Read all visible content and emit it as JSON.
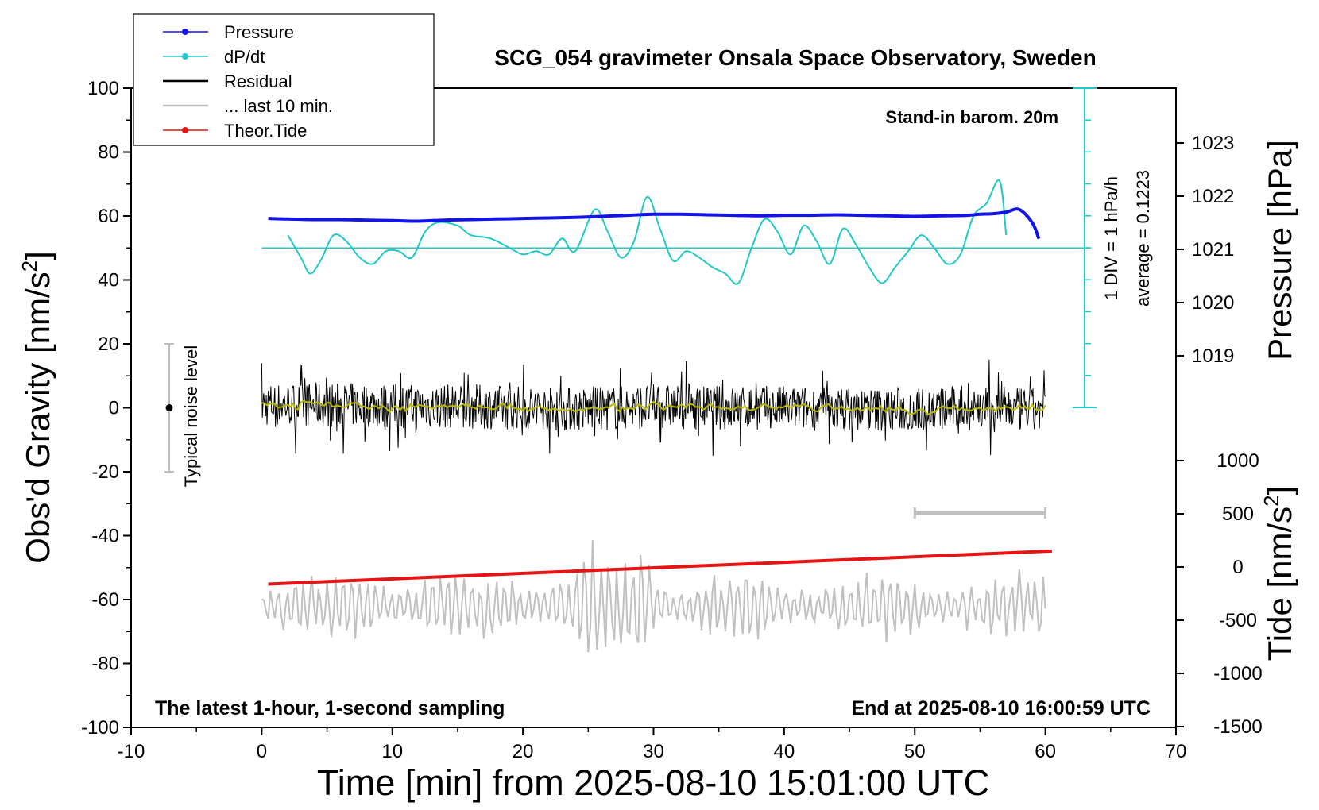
{
  "chart_data": {
    "type": "line",
    "title": "SCG_054 gravimeter Onsala Space Observatory, Sweden",
    "xlabel": "Time [min] from 2025-08-10 15:01:00 UTC",
    "ylabel_left_main": "Obs'd Gravity [nm/s",
    "ylabel_left_sup": "2",
    "ylabel_left_end": "]",
    "ylabel_right_top": "Pressure [hPa]",
    "ylabel_right_bottom_main": "Tide [nm/s",
    "ylabel_right_bottom_sup": "2",
    "ylabel_right_bottom_end": "]",
    "xlim": [
      -10,
      70
    ],
    "ylim": [
      -100,
      100
    ],
    "x_ticks": [
      -10,
      0,
      10,
      20,
      30,
      40,
      50,
      60,
      70
    ],
    "y_ticks": [
      100,
      80,
      60,
      40,
      20,
      0,
      -20,
      -40,
      -60,
      -80,
      -100
    ],
    "pressure_ticks": [
      1023,
      1022,
      1021,
      1020,
      1019
    ],
    "tide_ticks": [
      1000,
      500,
      0,
      -500,
      -1000,
      -1500
    ],
    "annotations": {
      "barometer": "Stand-in barom. 20m",
      "latest": "The latest 1-hour, 1-second sampling",
      "end": "End at 2025-08-10 16:00:59 UTC",
      "div": "1 DIV = 1 hPa/h",
      "average": "average = 0.1223",
      "noise": "Typical noise level"
    },
    "legend": [
      {
        "name": "Pressure",
        "color": "#1414e6",
        "marker": true
      },
      {
        "name": "dP/dt",
        "color": "#20c8c8",
        "marker": true
      },
      {
        "name": "Residual",
        "color": "#000000",
        "marker": false
      },
      {
        "name": "... last 10 min.",
        "color": "#c0c0c0",
        "marker": false
      },
      {
        "name": "Theor.Tide",
        "color": "#e61414",
        "marker": true
      }
    ],
    "series": [
      {
        "name": "Pressure",
        "unit": "hPa",
        "color": "#1414e6",
        "x": [
          0.5,
          2,
          4,
          6,
          8,
          10,
          12,
          14,
          16,
          18,
          20,
          22,
          24,
          26,
          28,
          30,
          32,
          34,
          36,
          38,
          40,
          42,
          44,
          46,
          48,
          50,
          52,
          54,
          55,
          56,
          57,
          58,
          59,
          59.5
        ],
        "y": [
          1021.58,
          1021.57,
          1021.56,
          1021.56,
          1021.55,
          1021.54,
          1021.53,
          1021.55,
          1021.56,
          1021.57,
          1021.58,
          1021.59,
          1021.6,
          1021.62,
          1021.64,
          1021.66,
          1021.66,
          1021.65,
          1021.64,
          1021.63,
          1021.64,
          1021.64,
          1021.65,
          1021.64,
          1021.63,
          1021.62,
          1021.63,
          1021.64,
          1021.66,
          1021.67,
          1021.7,
          1021.75,
          1021.5,
          1021.2
        ]
      },
      {
        "name": "dP/dt",
        "unit": "nm/s2-equivalent",
        "color": "#20c8c8",
        "x": [
          2,
          3,
          3.7,
          4.5,
          5.5,
          6.5,
          7.5,
          8.5,
          9.5,
          10.5,
          11.5,
          12.5,
          13.5,
          15,
          16,
          17.5,
          19,
          20,
          21,
          22,
          23,
          24,
          25.5,
          26.5,
          27.5,
          28.5,
          29.5,
          30.5,
          31.5,
          32.5,
          33.5,
          34.5,
          35.5,
          36.5,
          37.5,
          38.5,
          39.5,
          40.5,
          41.5,
          42.5,
          43.5,
          44.5,
          45.5,
          46.5,
          47.5,
          48.5,
          49.5,
          50.5,
          51.5,
          52.5,
          53.5,
          54.5,
          55.5,
          56.5,
          57
        ],
        "y": [
          54,
          47,
          42,
          46,
          54,
          52,
          47,
          45,
          49,
          49,
          47,
          55,
          58,
          57,
          54,
          53,
          50,
          48,
          49,
          48,
          53,
          49,
          62,
          55,
          47,
          52,
          66,
          56,
          46,
          49,
          47,
          44,
          42,
          39,
          50,
          59,
          55,
          48,
          57,
          52,
          45,
          56,
          51,
          44,
          39,
          44,
          49,
          54,
          50,
          45,
          48,
          60,
          64,
          71,
          54
        ]
      },
      {
        "name": "Residual",
        "unit": "nm/s2",
        "color": "#000000",
        "note": "dense 1-second residual, amplitude ~ +/-15 nm/s2 about 0, with smoothed yellow trace",
        "x": [
          0,
          5,
          10,
          15,
          20,
          25,
          30,
          35,
          40,
          45,
          50,
          55,
          60
        ],
        "y": [
          1,
          1,
          0.5,
          0.5,
          0,
          -0.5,
          0.5,
          0,
          0,
          -0.5,
          -0.5,
          0,
          -1
        ]
      },
      {
        "name": "... last 10 min.",
        "unit": "nm/s2",
        "color": "#c0c0c0",
        "note": "offset trace around -62, amplitude ~ +/-10",
        "x": [
          0,
          60
        ],
        "y": [
          -62,
          -62
        ]
      },
      {
        "name": "Theor.Tide",
        "unit": "nm/s2",
        "color": "#e61414",
        "x": [
          0.5,
          60.5
        ],
        "y": [
          -160,
          150
        ]
      }
    ],
    "bracket_last10": {
      "x": [
        50,
        60
      ]
    }
  }
}
